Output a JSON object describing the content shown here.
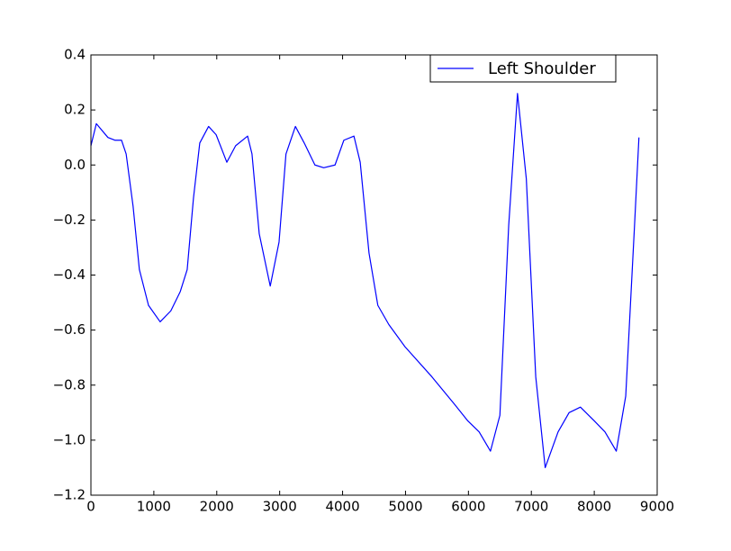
{
  "chart_data": {
    "type": "line",
    "x": [
      0,
      86,
      270,
      380,
      486,
      560,
      670,
      770,
      915,
      1100,
      1270,
      1420,
      1530,
      1630,
      1730,
      1870,
      1990,
      2160,
      2300,
      2490,
      2560,
      2675,
      2850,
      2990,
      3100,
      3250,
      3390,
      3560,
      3700,
      3880,
      4020,
      4180,
      4280,
      4420,
      4560,
      4735,
      4990,
      5420,
      5780,
      5990,
      6170,
      6350,
      6500,
      6640,
      6780,
      6920,
      7070,
      7220,
      7425,
      7600,
      7780,
      8000,
      8170,
      8350,
      8500,
      8640,
      8710
    ],
    "series": [
      {
        "name": "Left Shoulder",
        "color": "#0000ff",
        "values": [
          0.07,
          0.15,
          0.1,
          0.09,
          0.09,
          0.04,
          -0.15,
          -0.38,
          -0.51,
          -0.57,
          -0.53,
          -0.46,
          -0.38,
          -0.12,
          0.08,
          0.14,
          0.11,
          0.01,
          0.07,
          0.105,
          0.04,
          -0.25,
          -0.44,
          -0.28,
          0.04,
          0.14,
          0.08,
          0.0,
          -0.01,
          0.0,
          0.09,
          0.105,
          0.01,
          -0.32,
          -0.51,
          -0.58,
          -0.66,
          -0.77,
          -0.87,
          -0.93,
          -0.97,
          -1.04,
          -0.91,
          -0.22,
          0.26,
          -0.05,
          -0.77,
          -1.1,
          -0.97,
          -0.9,
          -0.88,
          -0.93,
          -0.97,
          -1.04,
          -0.84,
          -0.22,
          0.1
        ]
      }
    ],
    "xlim": [
      0,
      9000
    ],
    "xticks": [
      0,
      1000,
      2000,
      3000,
      4000,
      5000,
      6000,
      7000,
      8000,
      9000
    ],
    "ylim": [
      -1.2,
      0.4
    ],
    "yticks": [
      {
        "value": -1.2,
        "label": "−1.2"
      },
      {
        "value": -1.0,
        "label": "−1.0"
      },
      {
        "value": -0.8,
        "label": "−0.8"
      },
      {
        "value": -0.6,
        "label": "−0.6"
      },
      {
        "value": -0.4,
        "label": "−0.4"
      },
      {
        "value": -0.2,
        "label": "−0.2"
      },
      {
        "value": 0.0,
        "label": "0.0"
      },
      0.2,
      0.4
    ],
    "legend": "upper right",
    "grid": false
  }
}
